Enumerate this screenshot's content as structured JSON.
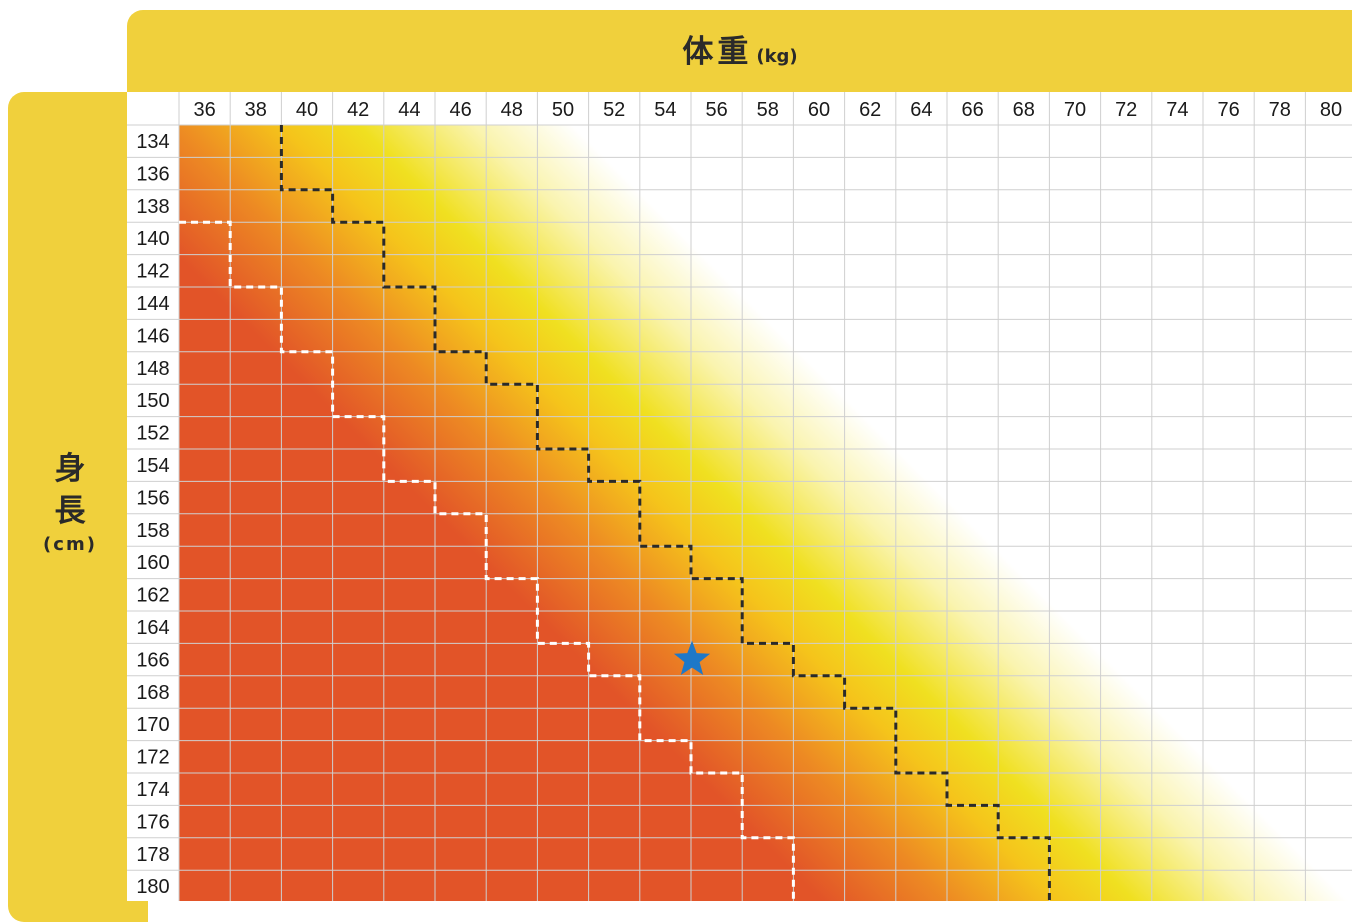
{
  "chart_data": {
    "type": "heatmap",
    "xlabel": "体重",
    "xunit": "(kg)",
    "ylabel_chars": [
      "身",
      "長"
    ],
    "yunit": "(cm)",
    "x_ticks": [
      36,
      38,
      40,
      42,
      44,
      46,
      48,
      50,
      52,
      54,
      56,
      58,
      60,
      62,
      64,
      66,
      68,
      70,
      72,
      74,
      76,
      78,
      80
    ],
    "y_ticks": [
      134,
      136,
      138,
      140,
      142,
      144,
      146,
      148,
      150,
      152,
      154,
      156,
      158,
      160,
      162,
      164,
      166,
      168,
      170,
      172,
      174,
      176,
      178,
      180
    ],
    "grid": true,
    "zone_colors": {
      "red": "#e25428",
      "orange": "#ed8a23",
      "yellow": "#f0e020",
      "white": "#ffffff"
    },
    "lower_boundary_dashed_white": [
      {
        "height": 140,
        "weight_edge": 38
      },
      {
        "height": 142,
        "weight_edge": 38
      },
      {
        "height": 144,
        "weight_edge": 40
      },
      {
        "height": 146,
        "weight_edge": 40
      },
      {
        "height": 148,
        "weight_edge": 42
      },
      {
        "height": 150,
        "weight_edge": 42
      },
      {
        "height": 152,
        "weight_edge": 44
      },
      {
        "height": 154,
        "weight_edge": 44
      },
      {
        "height": 156,
        "weight_edge": 46
      },
      {
        "height": 158,
        "weight_edge": 48
      },
      {
        "height": 160,
        "weight_edge": 48
      },
      {
        "height": 162,
        "weight_edge": 50
      },
      {
        "height": 164,
        "weight_edge": 50
      },
      {
        "height": 166,
        "weight_edge": 52
      },
      {
        "height": 168,
        "weight_edge": 54
      },
      {
        "height": 170,
        "weight_edge": 54
      },
      {
        "height": 172,
        "weight_edge": 56
      },
      {
        "height": 174,
        "weight_edge": 58
      },
      {
        "height": 176,
        "weight_edge": 58
      },
      {
        "height": 178,
        "weight_edge": 60
      },
      {
        "height": 180,
        "weight_edge": 60
      }
    ],
    "upper_boundary_dashed_black": [
      {
        "height": 134,
        "weight_edge": 40
      },
      {
        "height": 136,
        "weight_edge": 40
      },
      {
        "height": 138,
        "weight_edge": 42
      },
      {
        "height": 140,
        "weight_edge": 44
      },
      {
        "height": 142,
        "weight_edge": 44
      },
      {
        "height": 144,
        "weight_edge": 46
      },
      {
        "height": 146,
        "weight_edge": 46
      },
      {
        "height": 148,
        "weight_edge": 48
      },
      {
        "height": 150,
        "weight_edge": 50
      },
      {
        "height": 152,
        "weight_edge": 50
      },
      {
        "height": 154,
        "weight_edge": 52
      },
      {
        "height": 156,
        "weight_edge": 54
      },
      {
        "height": 158,
        "weight_edge": 54
      },
      {
        "height": 160,
        "weight_edge": 56
      },
      {
        "height": 162,
        "weight_edge": 58
      },
      {
        "height": 164,
        "weight_edge": 58
      },
      {
        "height": 166,
        "weight_edge": 60
      },
      {
        "height": 168,
        "weight_edge": 62
      },
      {
        "height": 170,
        "weight_edge": 64
      },
      {
        "height": 172,
        "weight_edge": 64
      },
      {
        "height": 174,
        "weight_edge": 66
      },
      {
        "height": 176,
        "weight_edge": 68
      },
      {
        "height": 178,
        "weight_edge": 70
      },
      {
        "height": 180,
        "weight_edge": 70
      }
    ],
    "marker": {
      "shape": "star",
      "weight": 56,
      "height": 166,
      "color": "#1e78c8"
    }
  }
}
